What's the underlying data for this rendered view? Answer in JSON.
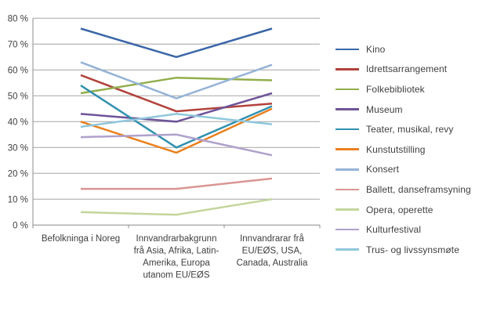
{
  "chart_data": {
    "type": "line",
    "title": "",
    "xlabel": "",
    "ylabel": "",
    "ylim": [
      0,
      80
    ],
    "ytick_step": 10,
    "ytick_labels": [
      "0 %",
      "10 %",
      "20 %",
      "30 %",
      "40 %",
      "50 %",
      "60 %",
      "70 %",
      "80 %"
    ],
    "grid": true,
    "legend_position": "right",
    "categories": [
      "Befolkninga i Noreg",
      "Innvandrarbakgrunn frå Asia, Afrika, Latin-Amerika, Europa utanom EU/EØS",
      "Innvandrarar frå EU/EØS, USA, Canada, Australia"
    ],
    "category_label_lines": [
      [
        "Befolkninga i Noreg"
      ],
      [
        "Innvandrarbakgrunn",
        "frå Asia, Afrika, Latin-",
        "Amerika, Europa",
        "utanom EU/EØS"
      ],
      [
        "Innvandrarar frå",
        "EU/EØS, USA,",
        "Canada, Australia"
      ]
    ],
    "series": [
      {
        "name": "Kino",
        "color": "#3A66A8",
        "values": [
          76,
          65,
          76
        ]
      },
      {
        "name": "Idrettsarrangement",
        "color": "#B2423B",
        "values": [
          58,
          44,
          47
        ]
      },
      {
        "name": "Folkebibliotek",
        "color": "#92AE4C",
        "values": [
          51,
          57,
          56
        ]
      },
      {
        "name": "Museum",
        "color": "#6F5499",
        "values": [
          43,
          40,
          51
        ]
      },
      {
        "name": "Teater, musikal, revy",
        "color": "#3191B0",
        "values": [
          54,
          30,
          46
        ]
      },
      {
        "name": "Kunstutstilling",
        "color": "#E9801F",
        "values": [
          40,
          28,
          45
        ]
      },
      {
        "name": "Konsert",
        "color": "#95B3D7",
        "values": [
          63,
          49,
          62
        ]
      },
      {
        "name": "Ballett, danseframsyning",
        "color": "#D99694",
        "values": [
          14,
          14,
          18
        ]
      },
      {
        "name": "Opera, operette",
        "color": "#C3D69B",
        "values": [
          5,
          4,
          10
        ]
      },
      {
        "name": "Kulturfestival",
        "color": "#AFA1CB",
        "values": [
          34,
          35,
          27
        ]
      },
      {
        "name": "Trus- og livssynsmøte",
        "color": "#8FC7DC",
        "values": [
          38,
          43,
          39
        ]
      }
    ]
  },
  "colors": {
    "background": "#FFFFFF",
    "gridline": "#A6A6A6",
    "axis": "#8C8C8C",
    "text": "#3F3F3F"
  }
}
